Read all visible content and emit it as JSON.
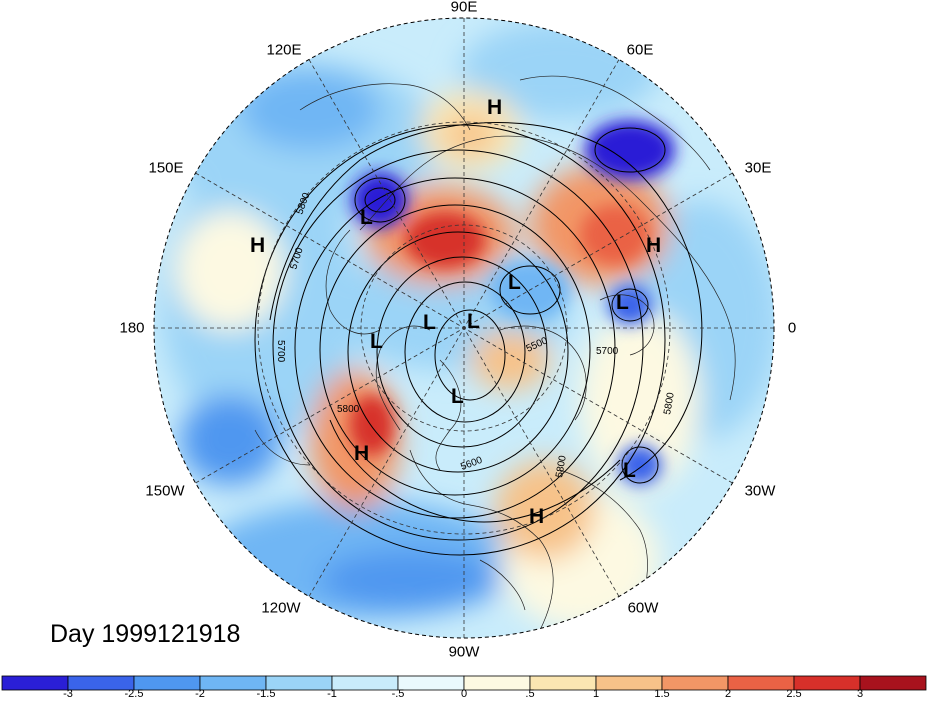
{
  "map": {
    "projection": "north-polar-stereographic",
    "longitude_labels": {
      "top": "90E",
      "upper_right": "60E",
      "right_upper": "30E",
      "right": "0",
      "right_lower": "30W",
      "lower_right": "60W",
      "bottom": "90W",
      "lower_left": "120W",
      "left_lower": "150W",
      "left": "180",
      "left_upper": "150E",
      "upper_left": "120E"
    },
    "day_label": "Day 1999121918",
    "contour_labels": [
      "5800",
      "5700",
      "5700",
      "5800",
      "5600",
      "5500",
      "5700",
      "5800",
      "5800"
    ],
    "pressure_systems": [
      {
        "type": "H"
      },
      {
        "type": "H"
      },
      {
        "type": "H"
      },
      {
        "type": "H"
      },
      {
        "type": "H"
      },
      {
        "type": "L"
      },
      {
        "type": "L"
      },
      {
        "type": "L"
      },
      {
        "type": "L"
      },
      {
        "type": "L"
      },
      {
        "type": "L"
      },
      {
        "type": "L"
      },
      {
        "type": "L"
      }
    ],
    "colorbar": {
      "labels": [
        "-3",
        "-2.5",
        "-2",
        "-1.5",
        "-1",
        "-.5",
        "0",
        ".5",
        "1",
        "1.5",
        "2",
        "2.5",
        "3"
      ],
      "colors": [
        "#2a1fd6",
        "#3a64ea",
        "#4f97f0",
        "#6fb6f4",
        "#9bd4f7",
        "#c9ecfb",
        "#eaf9fd",
        "#fdf9e2",
        "#fbe6b2",
        "#f7c289",
        "#f29666",
        "#ea6245",
        "#d7302a",
        "#a8121d"
      ]
    }
  }
}
